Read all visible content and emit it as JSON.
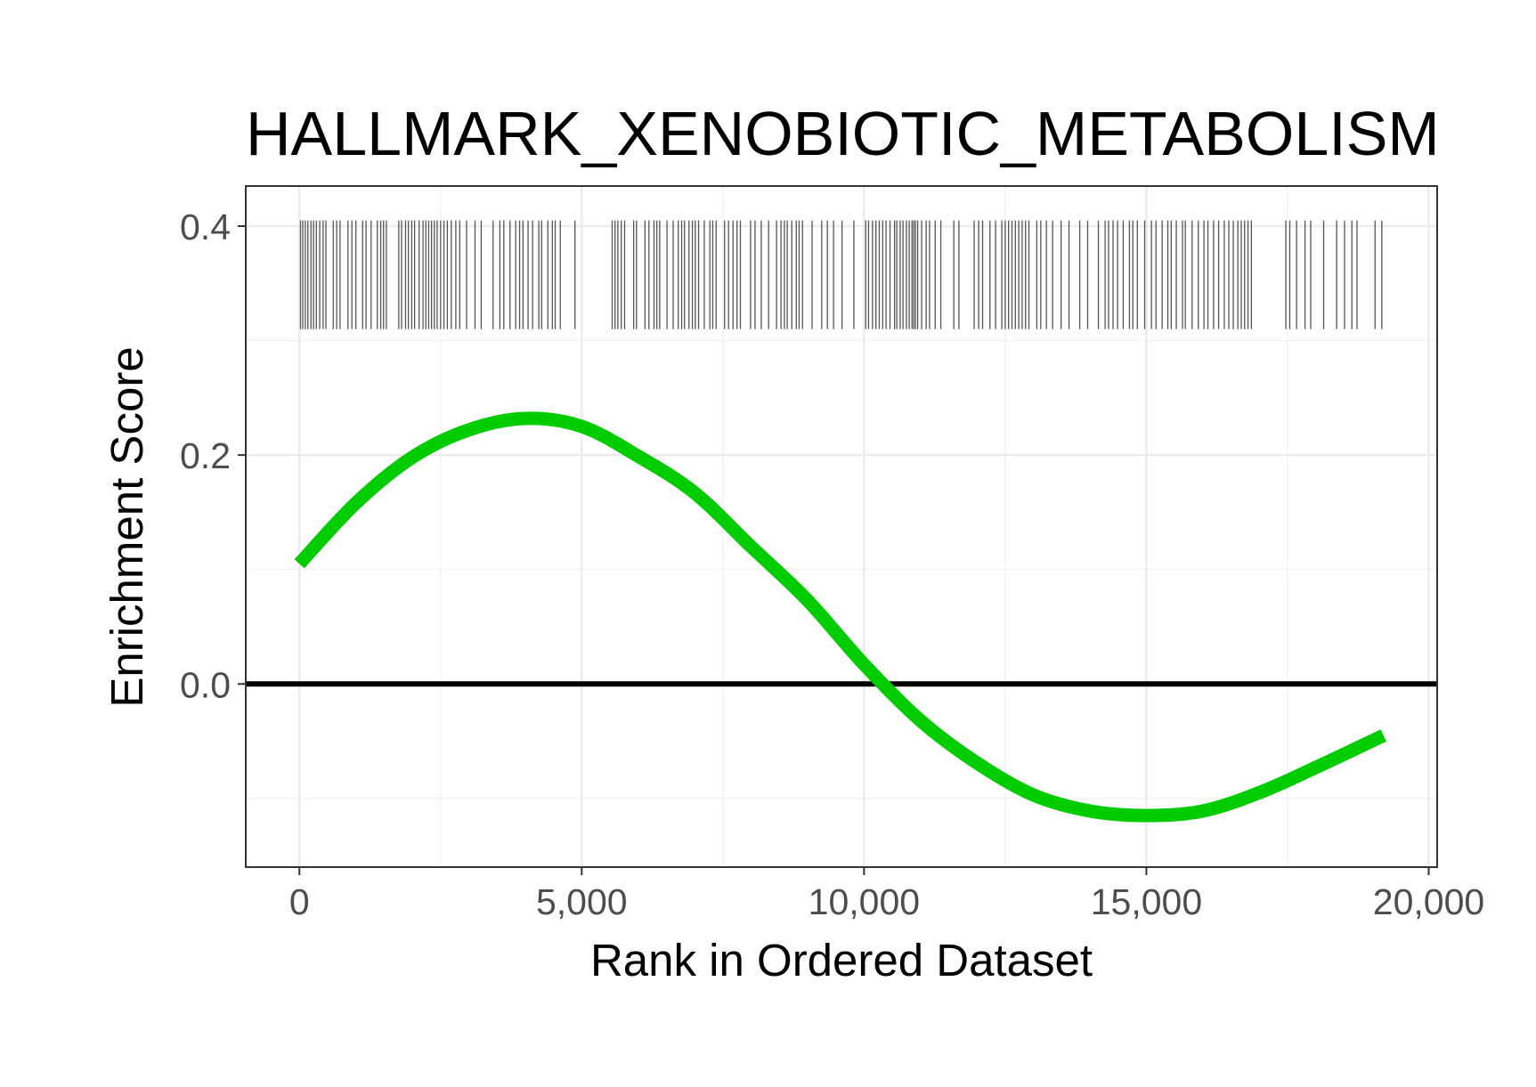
{
  "chart_data": {
    "type": "line",
    "title": "HALLMARK_XENOBIOTIC_METABOLISM",
    "xlabel": "Rank in Ordered Dataset",
    "ylabel": "Enrichment Score",
    "xlim": [
      -950,
      20150
    ],
    "ylim": [
      -0.16,
      0.435
    ],
    "x_ticks": [
      0,
      5000,
      10000,
      15000,
      20000
    ],
    "x_tick_labels": [
      "0",
      "5,000",
      "10,000",
      "15,000",
      "20,000"
    ],
    "y_ticks": [
      0.0,
      0.2,
      0.4
    ],
    "y_tick_labels": [
      "0.0",
      "0.2",
      "0.4"
    ],
    "grid": true,
    "zero_line": 0.0,
    "series": [
      {
        "color": "#00cc00",
        "x": [
          0,
          1000,
          2000,
          3000,
          4000,
          5000,
          6000,
          7000,
          8000,
          9000,
          10000,
          11000,
          12000,
          13000,
          14000,
          15000,
          16000,
          17000,
          18000,
          19200
        ],
        "y": [
          0.105,
          0.158,
          0.198,
          0.222,
          0.232,
          0.225,
          0.199,
          0.167,
          0.12,
          0.073,
          0.017,
          -0.032,
          -0.069,
          -0.097,
          -0.111,
          -0.115,
          -0.111,
          -0.095,
          -0.073,
          -0.045
        ]
      }
    ],
    "hits": {
      "color": "#555555",
      "y_range": [
        0.31,
        0.405
      ],
      "x": [
        20,
        60,
        105,
        150,
        205,
        250,
        300,
        360,
        420,
        470,
        600,
        660,
        720,
        860,
        930,
        1000,
        1120,
        1180,
        1270,
        1380,
        1440,
        1490,
        1540,
        1760,
        1810,
        1880,
        1930,
        1990,
        2040,
        2120,
        2190,
        2240,
        2290,
        2340,
        2390,
        2440,
        2500,
        2560,
        2620,
        2690,
        2770,
        2840,
        2960,
        3110,
        3220,
        3430,
        3550,
        3620,
        3730,
        3830,
        3900,
        3960,
        4050,
        4130,
        4240,
        4290,
        4400,
        4480,
        4530,
        4620,
        4880,
        5540,
        5590,
        5640,
        5700,
        5760,
        5920,
        5970,
        6120,
        6190,
        6280,
        6330,
        6380,
        6510,
        6620,
        6710,
        6770,
        6820,
        6900,
        6960,
        7010,
        7070,
        7170,
        7270,
        7320,
        7380,
        7530,
        7600,
        7680,
        7750,
        7810,
        7990,
        8070,
        8180,
        8310,
        8450,
        8530,
        8590,
        8640,
        8720,
        8800,
        8850,
        8910,
        9080,
        9250,
        9350,
        9460,
        9610,
        9820,
        10030,
        10080,
        10150,
        10210,
        10270,
        10330,
        10390,
        10460,
        10540,
        10580,
        10640,
        10690,
        10750,
        10800,
        10850,
        10880,
        10910,
        10950,
        11020,
        11100,
        11160,
        11260,
        11360,
        11590,
        11680,
        11950,
        12030,
        12100,
        12230,
        12330,
        12440,
        12500,
        12560,
        12620,
        12680,
        12740,
        12800,
        12860,
        12920,
        13060,
        13130,
        13230,
        13340,
        13490,
        13630,
        13820,
        13960,
        14150,
        14270,
        14330,
        14410,
        14490,
        14590,
        14700,
        14760,
        14840,
        14970,
        15090,
        15170,
        15280,
        15380,
        15440,
        15530,
        15640,
        15690,
        15810,
        15920,
        16020,
        16090,
        16190,
        16280,
        16380,
        16460,
        16540,
        16620,
        16680,
        16740,
        16800,
        16860,
        17470,
        17540,
        17660,
        17810,
        17910,
        18140,
        18370,
        18510,
        18640,
        18730,
        19050,
        19170
      ]
    }
  }
}
